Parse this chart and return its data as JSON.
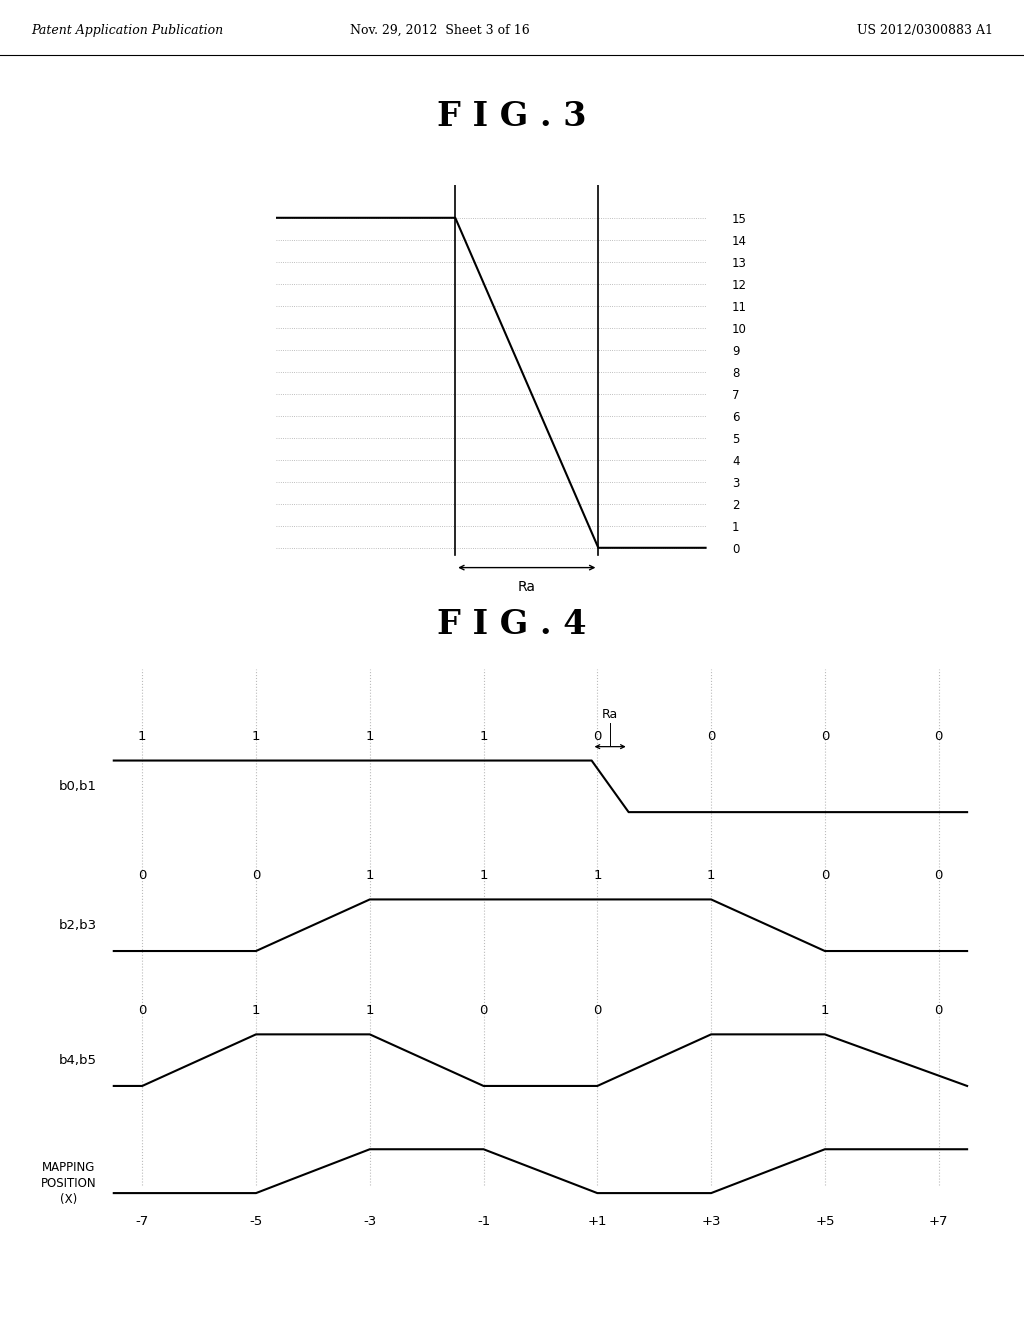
{
  "header_left": "Patent Application Publication",
  "header_mid": "Nov. 29, 2012  Sheet 3 of 16",
  "header_right": "US 2012/0300883 A1",
  "fig3_title": "F I G . 3",
  "fig4_title": "F I G . 4",
  "fig3_yticks": [
    0,
    1,
    2,
    3,
    4,
    5,
    6,
    7,
    8,
    9,
    10,
    11,
    12,
    13,
    14,
    15
  ],
  "fig4_b0b1_label": "b0,b1",
  "fig4_b2b3_label": "b2,b3",
  "fig4_b4b5_label": "b4,b5",
  "fig4_mapping_label": "MAPPING\nPOSITION\n(X)",
  "fig4_x_tick_labels": [
    "-7",
    "-5",
    "-3",
    "-1",
    "+1",
    "+3",
    "+5",
    "+7"
  ],
  "fig4_b0b1_bits": [
    "1",
    "1",
    "1",
    "1",
    "0",
    "0",
    "0",
    "0"
  ],
  "fig4_b2b3_bits": [
    "0",
    "0",
    "1",
    "1",
    "1",
    "1",
    "0",
    "0"
  ],
  "fig4_b4b5_bits": [
    "0",
    "1",
    "1",
    "0",
    "0",
    "",
    "1",
    "0"
  ],
  "line_color": "#000000",
  "bg_color": "#ffffff",
  "dot_color": "#aaaaaa",
  "header_fontsize": 9,
  "fig_title_fontsize": 24,
  "tick_fontsize": 8.5,
  "label_fontsize": 10
}
